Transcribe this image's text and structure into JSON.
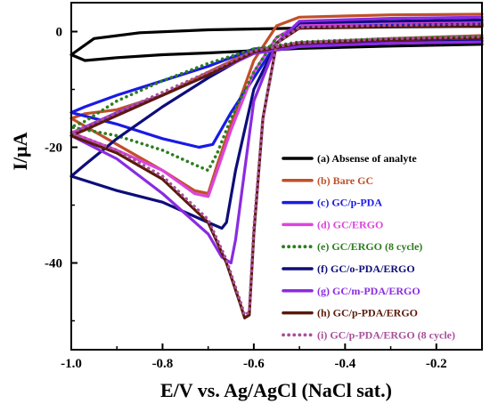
{
  "chart_data": {
    "type": "line",
    "title": "",
    "xlabel": "E/V vs. Ag/AgCl (NaCl sat.)",
    "ylabel": "I/μA",
    "xlim": [
      -1.0,
      -0.1
    ],
    "ylim": [
      -55,
      5
    ],
    "x_direction": "decreasing",
    "xticks": [
      -1.0,
      -0.8,
      -0.6,
      -0.4,
      -0.2
    ],
    "xtick_labels": [
      "-1.0",
      "-0.8",
      "-0.6",
      "-0.4",
      "-0.2"
    ],
    "yticks": [
      0,
      -20,
      -40
    ],
    "ytick_labels": [
      "0",
      "-20",
      "-40"
    ],
    "grid": false,
    "legend_position": "right",
    "series": [
      {
        "name": "(a) Absense of analyte",
        "color": "#000000",
        "style": "solid",
        "points": [
          [
            -0.1,
            0.9
          ],
          [
            -0.3,
            0.8
          ],
          [
            -0.5,
            0.6
          ],
          [
            -0.7,
            0.3
          ],
          [
            -0.85,
            -0.2
          ],
          [
            -0.95,
            -1.2
          ],
          [
            -1.0,
            -4.0
          ],
          [
            -0.97,
            -5.0
          ],
          [
            -0.9,
            -4.5
          ],
          [
            -0.8,
            -4.0
          ],
          [
            -0.7,
            -3.7
          ],
          [
            -0.6,
            -3.3
          ],
          [
            -0.5,
            -2.9
          ],
          [
            -0.3,
            -2.5
          ],
          [
            -0.1,
            -2.2
          ]
        ]
      },
      {
        "name": "(b) Bare GC",
        "color": "#c0502a",
        "style": "solid",
        "points": [
          [
            -0.1,
            3.0
          ],
          [
            -0.3,
            2.9
          ],
          [
            -0.5,
            2.5
          ],
          [
            -0.55,
            1.0
          ],
          [
            -0.6,
            -5.0
          ],
          [
            -0.65,
            -16.0
          ],
          [
            -0.68,
            -23.0
          ],
          [
            -0.7,
            -28.0
          ],
          [
            -0.73,
            -27.5
          ],
          [
            -0.8,
            -24.0
          ],
          [
            -0.9,
            -19.5
          ],
          [
            -1.0,
            -15.0
          ],
          [
            -0.97,
            -14.2
          ],
          [
            -0.9,
            -13.5
          ],
          [
            -0.8,
            -11.0
          ],
          [
            -0.7,
            -7.0
          ],
          [
            -0.6,
            -3.2
          ],
          [
            -0.5,
            -2.0
          ],
          [
            -0.3,
            -1.2
          ],
          [
            -0.1,
            -0.7
          ]
        ]
      },
      {
        "name": "(c) GC/p-PDA",
        "color": "#1a1ae6",
        "style": "solid",
        "points": [
          [
            -0.1,
            1.5
          ],
          [
            -0.3,
            1.3
          ],
          [
            -0.5,
            1.0
          ],
          [
            -0.55,
            -2.0
          ],
          [
            -0.6,
            -8.0
          ],
          [
            -0.65,
            -14.0
          ],
          [
            -0.69,
            -19.5
          ],
          [
            -0.72,
            -20.0
          ],
          [
            -0.8,
            -18.5
          ],
          [
            -0.9,
            -16.0
          ],
          [
            -1.0,
            -14.0
          ],
          [
            -0.97,
            -13.0
          ],
          [
            -0.9,
            -11.0
          ],
          [
            -0.8,
            -8.5
          ],
          [
            -0.7,
            -6.0
          ],
          [
            -0.6,
            -3.0
          ],
          [
            -0.5,
            -2.5
          ],
          [
            -0.3,
            -1.9
          ],
          [
            -0.1,
            -1.6
          ]
        ]
      },
      {
        "name": "(d) GC/ERGO",
        "color": "#dd44dd",
        "style": "solid",
        "points": [
          [
            -0.1,
            1.8
          ],
          [
            -0.3,
            1.6
          ],
          [
            -0.5,
            1.2
          ],
          [
            -0.55,
            -1.0
          ],
          [
            -0.6,
            -7.0
          ],
          [
            -0.65,
            -17.0
          ],
          [
            -0.68,
            -24.0
          ],
          [
            -0.7,
            -28.5
          ],
          [
            -0.73,
            -28.0
          ],
          [
            -0.8,
            -24.0
          ],
          [
            -0.9,
            -20.5
          ],
          [
            -1.0,
            -17.5
          ],
          [
            -0.97,
            -16.5
          ],
          [
            -0.9,
            -14.5
          ],
          [
            -0.8,
            -11.0
          ],
          [
            -0.7,
            -7.5
          ],
          [
            -0.6,
            -3.5
          ],
          [
            -0.5,
            -2.2
          ],
          [
            -0.3,
            -1.6
          ],
          [
            -0.1,
            -1.3
          ]
        ]
      },
      {
        "name": "(e) GC/ERGO (8 cycle)",
        "color": "#2e7d1e",
        "style": "dotted",
        "points": [
          [
            -0.1,
            1.2
          ],
          [
            -0.3,
            1.0
          ],
          [
            -0.5,
            0.8
          ],
          [
            -0.55,
            -1.0
          ],
          [
            -0.6,
            -7.0
          ],
          [
            -0.65,
            -15.0
          ],
          [
            -0.68,
            -21.0
          ],
          [
            -0.7,
            -24.0
          ],
          [
            -0.73,
            -23.0
          ],
          [
            -0.8,
            -20.5
          ],
          [
            -0.9,
            -18.0
          ],
          [
            -1.0,
            -16.5
          ],
          [
            -0.97,
            -15.5
          ],
          [
            -0.9,
            -12.0
          ],
          [
            -0.8,
            -8.5
          ],
          [
            -0.7,
            -5.5
          ],
          [
            -0.6,
            -3.0
          ],
          [
            -0.5,
            -1.8
          ],
          [
            -0.3,
            -1.2
          ],
          [
            -0.1,
            -0.8
          ]
        ]
      },
      {
        "name": "(f) GC/o-PDA/ERGO",
        "color": "#0d0d7a",
        "style": "solid",
        "points": [
          [
            -0.1,
            2.0
          ],
          [
            -0.3,
            1.8
          ],
          [
            -0.5,
            1.5
          ],
          [
            -0.55,
            -2.0
          ],
          [
            -0.6,
            -10.0
          ],
          [
            -0.64,
            -24.0
          ],
          [
            -0.66,
            -33.0
          ],
          [
            -0.67,
            -34.0
          ],
          [
            -0.7,
            -33.0
          ],
          [
            -0.8,
            -29.5
          ],
          [
            -0.9,
            -27.5
          ],
          [
            -1.0,
            -25.0
          ],
          [
            -0.97,
            -23.0
          ],
          [
            -0.9,
            -18.5
          ],
          [
            -0.8,
            -13.0
          ],
          [
            -0.7,
            -8.0
          ],
          [
            -0.6,
            -3.5
          ],
          [
            -0.5,
            -2.5
          ],
          [
            -0.3,
            -1.9
          ],
          [
            -0.1,
            -1.6
          ]
        ]
      },
      {
        "name": "(g) GC/m-PDA/ERGO",
        "color": "#8a2be2",
        "style": "solid",
        "points": [
          [
            -0.1,
            2.5
          ],
          [
            -0.3,
            2.3
          ],
          [
            -0.5,
            1.8
          ],
          [
            -0.55,
            -2.0
          ],
          [
            -0.6,
            -12.0
          ],
          [
            -0.62,
            -24.0
          ],
          [
            -0.64,
            -36.0
          ],
          [
            -0.65,
            -40.0
          ],
          [
            -0.67,
            -39.0
          ],
          [
            -0.7,
            -35.0
          ],
          [
            -0.8,
            -28.0
          ],
          [
            -0.9,
            -22.0
          ],
          [
            -1.0,
            -18.0
          ],
          [
            -0.97,
            -16.5
          ],
          [
            -0.9,
            -14.0
          ],
          [
            -0.8,
            -11.0
          ],
          [
            -0.7,
            -7.5
          ],
          [
            -0.6,
            -3.8
          ],
          [
            -0.5,
            -2.6
          ],
          [
            -0.3,
            -2.0
          ],
          [
            -0.1,
            -1.8
          ]
        ]
      },
      {
        "name": "(h) GC/p-PDA/ERGO",
        "color": "#5a1a0a",
        "style": "solid",
        "points": [
          [
            -0.1,
            1.0
          ],
          [
            -0.3,
            0.9
          ],
          [
            -0.5,
            0.6
          ],
          [
            -0.55,
            -2.0
          ],
          [
            -0.58,
            -15.0
          ],
          [
            -0.6,
            -35.0
          ],
          [
            -0.61,
            -49.0
          ],
          [
            -0.62,
            -49.5
          ],
          [
            -0.63,
            -47.0
          ],
          [
            -0.66,
            -40.0
          ],
          [
            -0.7,
            -33.0
          ],
          [
            -0.8,
            -25.5
          ],
          [
            -0.9,
            -21.0
          ],
          [
            -1.0,
            -18.0
          ],
          [
            -0.97,
            -17.0
          ],
          [
            -0.9,
            -14.5
          ],
          [
            -0.8,
            -11.0
          ],
          [
            -0.7,
            -7.5
          ],
          [
            -0.6,
            -3.5
          ],
          [
            -0.5,
            -2.0
          ],
          [
            -0.3,
            -1.4
          ],
          [
            -0.1,
            -1.1
          ]
        ]
      },
      {
        "name": "(i) GC/p-PDA/ERGO (8 cycle)",
        "color": "#a8509a",
        "style": "dotted",
        "points": [
          [
            -0.1,
            1.3
          ],
          [
            -0.3,
            1.1
          ],
          [
            -0.5,
            0.8
          ],
          [
            -0.55,
            -2.0
          ],
          [
            -0.58,
            -15.0
          ],
          [
            -0.6,
            -34.0
          ],
          [
            -0.61,
            -48.5
          ],
          [
            -0.62,
            -49.0
          ],
          [
            -0.63,
            -46.5
          ],
          [
            -0.66,
            -39.5
          ],
          [
            -0.7,
            -32.5
          ],
          [
            -0.8,
            -25.0
          ],
          [
            -0.9,
            -20.5
          ],
          [
            -1.0,
            -17.5
          ],
          [
            -0.97,
            -16.5
          ],
          [
            -0.9,
            -14.0
          ],
          [
            -0.8,
            -10.5
          ],
          [
            -0.7,
            -7.0
          ],
          [
            -0.6,
            -3.3
          ],
          [
            -0.5,
            -1.9
          ],
          [
            -0.3,
            -1.2
          ],
          [
            -0.1,
            -0.9
          ]
        ]
      }
    ]
  }
}
